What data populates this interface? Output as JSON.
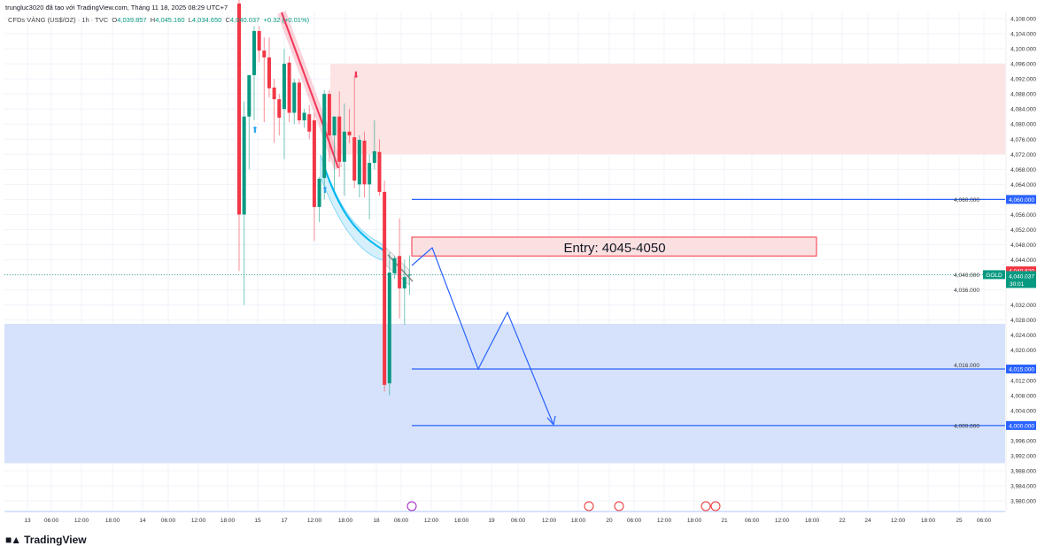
{
  "header": {
    "attribution": "trungluc3020 đã tạo với TradingView.com, Tháng 11 18, 2025 08:29 UTC+7",
    "symbol": "CFDs VÀNG (US$/OZ) · 1h · TVC",
    "open_label": "O",
    "open": "4,039.857",
    "high_label": "H",
    "high": "4,045.160",
    "low_label": "L",
    "low": "4,034.650",
    "close_label": "C",
    "close": "4,040.037",
    "change": "+0.32 (+0.01%)"
  },
  "colors": {
    "up": "#089981",
    "down": "#f23645",
    "line": "#2962ff",
    "supply_zone": "#fce4e4",
    "demand_zone": "#d6e2fb"
  },
  "chart_data": {
    "type": "candlestick",
    "symbol_tag": "GOLD",
    "price_axis": {
      "min": 3980,
      "max": 4108,
      "step": 4,
      "ticks": [
        "4,108.000",
        "4,104.000",
        "4,100.000",
        "4,096.000",
        "4,092.000",
        "4,088.000",
        "4,084.000",
        "4,080.000",
        "4,076.000",
        "4,072.000",
        "4,068.000",
        "4,064.000",
        "4,060.000",
        "4,056.000",
        "4,052.000",
        "4,048.000",
        "4,044.000",
        "4,040.000",
        "4,036.000",
        "4,032.000",
        "4,028.000",
        "4,024.000",
        "4,020.000",
        "4,016.000",
        "4,012.000",
        "4,008.000",
        "4,004.000",
        "4,000.000",
        "3,996.000",
        "3,992.000",
        "3,988.000",
        "3,984.000",
        "3,980.000"
      ]
    },
    "time_axis": [
      "13",
      "06:00",
      "12:00",
      "18:00",
      "14",
      "06:00",
      "12:00",
      "18:00",
      "15",
      "17",
      "12:00",
      "18:00",
      "18",
      "06:00",
      "12:00",
      "18:00",
      "19",
      "06:00",
      "12:00",
      "18:00",
      "20",
      "06:00",
      "12:00",
      "18:00",
      "21",
      "06:00",
      "12:00",
      "18:00",
      "22",
      "24",
      "12:00",
      "18:00",
      "25",
      "06:00"
    ],
    "candles": [
      [
        4112,
        4115,
        4041,
        4056
      ],
      [
        4056,
        4086,
        4032,
        4082
      ],
      [
        4082,
        4093,
        4068,
        4093
      ],
      [
        4093,
        4106,
        4081,
        4104.7
      ],
      [
        4104.7,
        4106,
        4096.5,
        4099.5
      ],
      [
        4099.5,
        4103,
        4080.5,
        4097.7
      ],
      [
        4097.7,
        4103,
        4087,
        4089.5
      ],
      [
        4089.7,
        4092,
        4075,
        4086.6
      ],
      [
        4086.6,
        4088,
        4077,
        4081.7
      ],
      [
        4084,
        4100,
        4070.7,
        4096
      ],
      [
        4096.3,
        4098,
        4080.5,
        4083
      ],
      [
        4083,
        4092,
        4080,
        4091
      ],
      [
        4091,
        4092,
        4080,
        4081
      ],
      [
        4081,
        4084,
        4079,
        4083
      ],
      [
        4082.6,
        4085,
        4076,
        4078
      ],
      [
        4081,
        4083,
        4049,
        4058
      ],
      [
        4058,
        4066,
        4054,
        4065.5
      ],
      [
        4065.7,
        4089,
        4060,
        4088
      ],
      [
        4088,
        4089,
        4070,
        4077
      ],
      [
        4077,
        4082,
        4062.5,
        4082
      ],
      [
        4082,
        4088.7,
        4066,
        4070
      ],
      [
        4070,
        4085.5,
        4061,
        4078
      ],
      [
        4078,
        4084,
        4075,
        4077
      ],
      [
        4076.5,
        4092.5,
        4063,
        4065
      ],
      [
        4064,
        4077,
        4060.5,
        4075.8
      ],
      [
        4075.6,
        4078,
        4060.5,
        4064
      ],
      [
        4064,
        4072,
        4054.7,
        4069.7
      ],
      [
        4069.7,
        4081,
        4068,
        4072.8
      ],
      [
        4072.6,
        4076,
        4061,
        4062
      ],
      [
        4062,
        4065,
        4009,
        4010.8
      ],
      [
        4011.2,
        4046,
        4008,
        4040.6
      ],
      [
        4040.4,
        4045,
        4039,
        4044.4
      ],
      [
        4045,
        4055,
        4028.4,
        4036.4
      ],
      [
        4036.4,
        4044,
        4026.7,
        4039.4
      ],
      [
        4039.857,
        4045.16,
        4034.65,
        4040.037
      ]
    ],
    "zones": {
      "supply": {
        "from": 4072,
        "to": 4096
      },
      "demand": {
        "from": 3990,
        "to": 4027
      }
    },
    "entry_box": {
      "label": "Entry: 4045-4050",
      "from": 4045,
      "to": 4050
    },
    "levels": [
      {
        "price": 4060,
        "label": "4,060.000"
      },
      {
        "price": 4015,
        "label": "4,015.000"
      },
      {
        "price": 4000,
        "label": "4,000.000"
      }
    ],
    "last_price": {
      "price": 4040.037,
      "label": "4,040.037",
      "countdown": "30:01"
    },
    "prev_close": {
      "price": 4040.82,
      "label": "4,040.820"
    }
  },
  "footer": {
    "brand": "TradingView"
  }
}
